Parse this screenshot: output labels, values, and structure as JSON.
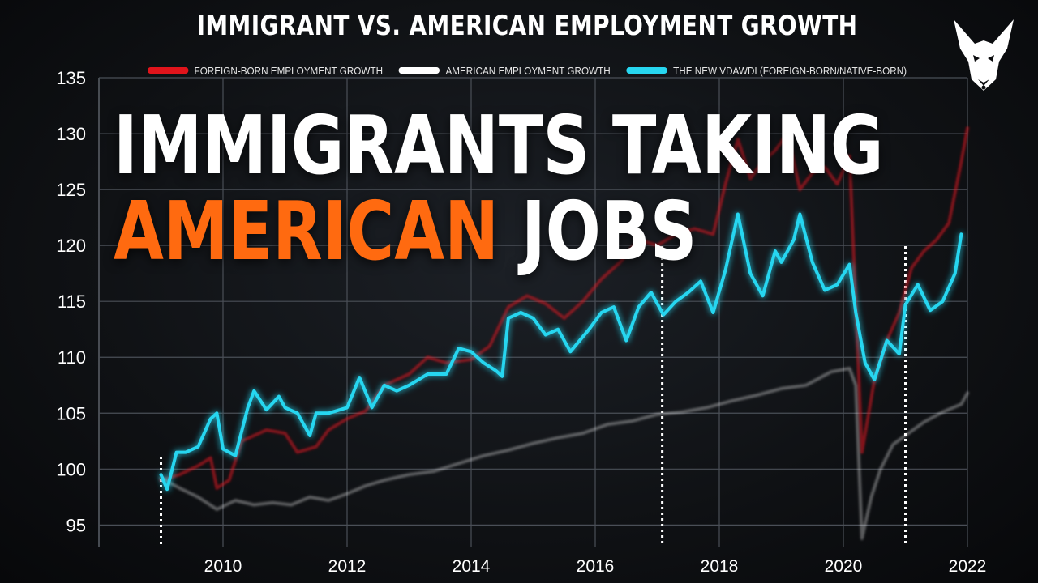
{
  "chart_data": {
    "type": "line",
    "title": "IMMIGRANT VS. AMERICAN EMPLOYMENT GROWTH",
    "headline": {
      "line1": "IMMIGRANTS TAKING",
      "line2_accent": "AMERICAN",
      "line2_rest": "JOBS"
    },
    "xlim": [
      2008.0,
      2022.0
    ],
    "ylim": [
      93,
      135
    ],
    "x_ticks": [
      2010,
      2012,
      2014,
      2016,
      2018,
      2020,
      2022
    ],
    "y_ticks": [
      95,
      100,
      105,
      110,
      115,
      120,
      125,
      130,
      135
    ],
    "grid": true,
    "legend_position": "top",
    "markers_x": [
      2009.0,
      2017.08,
      2021.0
    ],
    "series": [
      {
        "name": "FOREIGN-BORN EMPLOYMENT GROWTH",
        "color": "#e0141b",
        "x": [
          2009.0,
          2009.3,
          2009.6,
          2009.8,
          2009.9,
          2010.1,
          2010.3,
          2010.5,
          2010.7,
          2011.0,
          2011.2,
          2011.5,
          2011.7,
          2012.0,
          2012.3,
          2012.6,
          2013.0,
          2013.3,
          2013.6,
          2014.0,
          2014.3,
          2014.6,
          2014.9,
          2015.2,
          2015.5,
          2015.8,
          2016.1,
          2016.4,
          2016.7,
          2017.0,
          2017.3,
          2017.6,
          2017.9,
          2018.1,
          2018.3,
          2018.5,
          2018.7,
          2018.9,
          2019.1,
          2019.3,
          2019.5,
          2019.7,
          2019.9,
          2020.1,
          2020.3,
          2020.5,
          2020.7,
          2020.9,
          2021.1,
          2021.3,
          2021.5,
          2021.7,
          2021.9,
          2022.0
        ],
        "values": [
          99.0,
          99.5,
          100.3,
          101.0,
          98.3,
          99.0,
          102.5,
          103.0,
          103.5,
          103.2,
          101.5,
          102.0,
          103.5,
          104.5,
          105.2,
          107.5,
          108.5,
          110.0,
          109.5,
          109.8,
          111.0,
          114.5,
          115.5,
          114.8,
          113.5,
          115.0,
          117.0,
          118.5,
          120.5,
          120.0,
          121.0,
          121.5,
          121.0,
          125.5,
          129.5,
          126.0,
          127.5,
          128.5,
          130.0,
          125.0,
          126.5,
          127.0,
          125.5,
          128.0,
          101.5,
          108.0,
          111.5,
          114.0,
          118.0,
          119.5,
          120.5,
          122.0,
          127.5,
          130.5
        ]
      },
      {
        "name": "AMERICAN EMPLOYMENT GROWTH",
        "color": "#ffffff",
        "x": [
          2009.0,
          2009.3,
          2009.6,
          2009.9,
          2010.2,
          2010.5,
          2010.8,
          2011.1,
          2011.4,
          2011.7,
          2012.0,
          2012.3,
          2012.6,
          2013.0,
          2013.4,
          2013.8,
          2014.2,
          2014.6,
          2015.0,
          2015.4,
          2015.8,
          2016.2,
          2016.6,
          2017.0,
          2017.4,
          2017.8,
          2018.2,
          2018.6,
          2019.0,
          2019.4,
          2019.8,
          2020.1,
          2020.2,
          2020.3,
          2020.45,
          2020.6,
          2020.8,
          2021.0,
          2021.3,
          2021.6,
          2021.9,
          2022.0
        ],
        "values": [
          99.2,
          98.3,
          97.5,
          96.4,
          97.2,
          96.8,
          97.0,
          96.8,
          97.5,
          97.2,
          97.8,
          98.5,
          99.0,
          99.5,
          99.8,
          100.5,
          101.2,
          101.7,
          102.3,
          102.8,
          103.2,
          104.0,
          104.3,
          104.9,
          105.1,
          105.5,
          106.1,
          106.6,
          107.2,
          107.5,
          108.7,
          109.0,
          107.5,
          93.8,
          97.5,
          100.0,
          102.2,
          103.0,
          104.2,
          105.1,
          105.8,
          106.8
        ]
      },
      {
        "name": "THE NEW VDAWDI (FOREIGN-BORN/NATIVE-BORN)",
        "color": "#27d6f0",
        "x": [
          2009.0,
          2009.1,
          2009.25,
          2009.4,
          2009.6,
          2009.8,
          2009.9,
          2010.0,
          2010.2,
          2010.4,
          2010.5,
          2010.7,
          2010.9,
          2011.0,
          2011.2,
          2011.4,
          2011.5,
          2011.7,
          2012.0,
          2012.2,
          2012.4,
          2012.6,
          2012.8,
          2013.0,
          2013.3,
          2013.6,
          2013.8,
          2014.0,
          2014.2,
          2014.4,
          2014.5,
          2014.6,
          2014.8,
          2015.0,
          2015.2,
          2015.4,
          2015.6,
          2015.9,
          2016.1,
          2016.3,
          2016.5,
          2016.7,
          2016.9,
          2017.1,
          2017.3,
          2017.5,
          2017.7,
          2017.9,
          2018.1,
          2018.3,
          2018.5,
          2018.7,
          2018.9,
          2019.0,
          2019.2,
          2019.3,
          2019.5,
          2019.7,
          2019.9,
          2020.1,
          2020.2,
          2020.35,
          2020.5,
          2020.7,
          2020.9,
          2021.0,
          2021.2,
          2021.4,
          2021.6,
          2021.8,
          2021.9
        ],
        "values": [
          99.5,
          98.2,
          101.5,
          101.5,
          102.0,
          104.5,
          105.0,
          101.8,
          101.2,
          105.5,
          107.0,
          105.3,
          106.5,
          105.5,
          105.0,
          103.0,
          105.0,
          105.0,
          105.5,
          108.2,
          105.5,
          107.5,
          107.0,
          107.5,
          108.5,
          108.5,
          110.8,
          110.5,
          109.5,
          108.8,
          108.3,
          113.5,
          114.0,
          113.5,
          112.0,
          112.5,
          110.5,
          112.5,
          114.0,
          114.5,
          111.5,
          114.5,
          115.8,
          113.8,
          115.0,
          115.8,
          116.8,
          114.0,
          117.8,
          122.8,
          117.5,
          115.5,
          119.5,
          118.5,
          120.5,
          122.8,
          118.5,
          116.0,
          116.5,
          118.3,
          114.0,
          109.5,
          108.0,
          111.5,
          110.3,
          114.7,
          116.5,
          114.2,
          115.0,
          117.5,
          121.0
        ]
      }
    ]
  }
}
